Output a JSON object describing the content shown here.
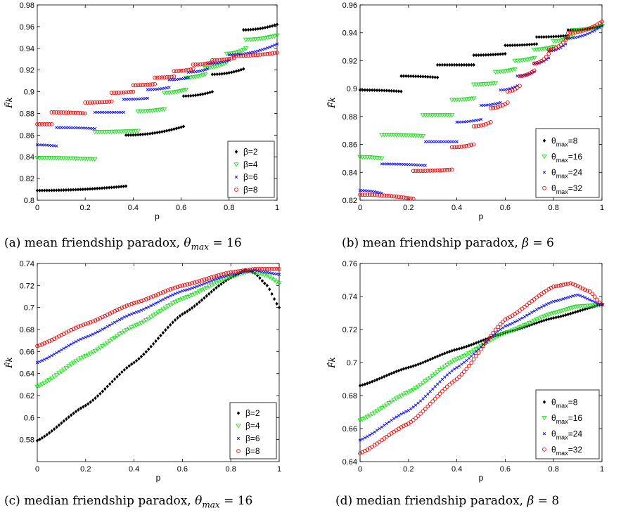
{
  "chart_data": [
    {
      "type": "scatter",
      "title": "",
      "xlabel": "p",
      "ylabel": "F̃k",
      "xlim": [
        0,
        1
      ],
      "ylim": [
        0.8,
        0.98
      ],
      "xticks": [
        "0",
        "0.2",
        "0.4",
        "0.6",
        "0.8",
        "1"
      ],
      "yticks": [
        "0.8",
        "0.82",
        "0.84",
        "0.86",
        "0.88",
        "0.9",
        "0.92",
        "0.94",
        "0.96",
        "0.98"
      ],
      "legend_position": "bottom-right",
      "kind": "step",
      "series": [
        {
          "name": "β=2",
          "color": "#000000",
          "marker": "diamond",
          "steps": [
            [
              0.0,
              0.37,
              0.809,
              0.813
            ],
            [
              0.37,
              0.61,
              0.86,
              0.868
            ],
            [
              0.61,
              0.73,
              0.896,
              0.9
            ],
            [
              0.73,
              0.86,
              0.916,
              0.921
            ],
            [
              0.86,
              1.0,
              0.957,
              0.962
            ]
          ]
        },
        {
          "name": "β=4",
          "color": "#22dd22",
          "marker": "triangle",
          "steps": [
            [
              0.0,
              0.24,
              0.839,
              0.838
            ],
            [
              0.24,
              0.42,
              0.863,
              0.864
            ],
            [
              0.42,
              0.53,
              0.882,
              0.884
            ],
            [
              0.53,
              0.62,
              0.899,
              0.902
            ],
            [
              0.62,
              0.7,
              0.913,
              0.916
            ],
            [
              0.7,
              0.79,
              0.922,
              0.927
            ],
            [
              0.79,
              0.87,
              0.935,
              0.94
            ],
            [
              0.87,
              1.0,
              0.948,
              0.952
            ]
          ]
        },
        {
          "name": "β=6",
          "color": "#0000ee",
          "marker": "cross",
          "steps": [
            [
              0.0,
              0.08,
              0.851,
              0.85
            ],
            [
              0.08,
              0.24,
              0.867,
              0.866
            ],
            [
              0.24,
              0.36,
              0.881,
              0.881
            ],
            [
              0.36,
              0.46,
              0.893,
              0.894
            ],
            [
              0.46,
              0.55,
              0.902,
              0.904
            ],
            [
              0.55,
              0.63,
              0.911,
              0.913
            ],
            [
              0.63,
              0.71,
              0.918,
              0.921
            ],
            [
              0.71,
              0.8,
              0.926,
              0.929
            ],
            [
              0.8,
              1.0,
              0.934,
              0.944
            ]
          ]
        },
        {
          "name": "β=8",
          "color": "#ee0000",
          "marker": "circle",
          "steps": [
            [
              0.0,
              0.06,
              0.87,
              0.87
            ],
            [
              0.06,
              0.2,
              0.881,
              0.88
            ],
            [
              0.2,
              0.31,
              0.89,
              0.891
            ],
            [
              0.31,
              0.4,
              0.899,
              0.9
            ],
            [
              0.4,
              0.49,
              0.906,
              0.907
            ],
            [
              0.49,
              0.57,
              0.913,
              0.914
            ],
            [
              0.57,
              0.65,
              0.919,
              0.921
            ],
            [
              0.65,
              0.73,
              0.925,
              0.927
            ],
            [
              0.73,
              0.82,
              0.929,
              0.931
            ],
            [
              0.82,
              1.0,
              0.933,
              0.936
            ]
          ]
        }
      ]
    },
    {
      "type": "scatter",
      "title": "",
      "xlabel": "p",
      "ylabel": "F̃k",
      "xlim": [
        0,
        1
      ],
      "ylim": [
        0.82,
        0.96
      ],
      "xticks": [
        "0",
        "0.2",
        "0.4",
        "0.6",
        "0.8",
        "1"
      ],
      "yticks": [
        "0.82",
        "0.84",
        "0.86",
        "0.88",
        "0.9",
        "0.92",
        "0.94",
        "0.96"
      ],
      "legend_position": "bottom-right",
      "kind": "step",
      "series": [
        {
          "name": "θmax=8",
          "label": "θ",
          "sub": "max",
          "suffix": "=8",
          "color": "#000000",
          "marker": "diamond",
          "steps": [
            [
              0.0,
              0.17,
              0.899,
              0.898
            ],
            [
              0.17,
              0.32,
              0.909,
              0.908
            ],
            [
              0.32,
              0.47,
              0.917,
              0.917
            ],
            [
              0.47,
              0.6,
              0.924,
              0.925
            ],
            [
              0.6,
              0.73,
              0.931,
              0.932
            ],
            [
              0.73,
              0.86,
              0.937,
              0.938
            ],
            [
              0.86,
              1.0,
              0.942,
              0.945
            ]
          ]
        },
        {
          "name": "θmax=16",
          "label": "θ",
          "sub": "max",
          "suffix": "=16",
          "color": "#22dd22",
          "marker": "triangle",
          "steps": [
            [
              0.0,
              0.09,
              0.851,
              0.85
            ],
            [
              0.09,
              0.26,
              0.867,
              0.866
            ],
            [
              0.26,
              0.38,
              0.881,
              0.881
            ],
            [
              0.38,
              0.47,
              0.892,
              0.893
            ],
            [
              0.47,
              0.56,
              0.903,
              0.904
            ],
            [
              0.56,
              0.64,
              0.912,
              0.914
            ],
            [
              0.64,
              0.72,
              0.92,
              0.922
            ],
            [
              0.72,
              0.8,
              0.928,
              0.93
            ],
            [
              0.8,
              0.88,
              0.934,
              0.938
            ],
            [
              0.88,
              1.0,
              0.942,
              0.945
            ]
          ]
        },
        {
          "name": "θmax=24",
          "label": "θ",
          "sub": "max",
          "suffix": "=24",
          "color": "#0000ee",
          "marker": "cross",
          "steps": [
            [
              0.0,
              0.09,
              0.827,
              0.825
            ],
            [
              0.09,
              0.27,
              0.846,
              0.845
            ],
            [
              0.27,
              0.4,
              0.862,
              0.862
            ],
            [
              0.4,
              0.5,
              0.876,
              0.878
            ],
            [
              0.5,
              0.58,
              0.888,
              0.89
            ],
            [
              0.58,
              0.65,
              0.899,
              0.902
            ],
            [
              0.65,
              0.72,
              0.909,
              0.912
            ],
            [
              0.72,
              0.78,
              0.918,
              0.922
            ],
            [
              0.78,
              0.85,
              0.927,
              0.932
            ],
            [
              0.85,
              1.0,
              0.936,
              0.945
            ]
          ]
        },
        {
          "name": "θmax=32",
          "label": "θ",
          "sub": "max",
          "suffix": "=32",
          "color": "#ee0000",
          "marker": "circle",
          "steps": [
            [
              0.0,
              0.22,
              0.824,
              0.821
            ],
            [
              0.22,
              0.38,
              0.841,
              0.842
            ],
            [
              0.38,
              0.47,
              0.858,
              0.86
            ],
            [
              0.47,
              0.54,
              0.873,
              0.876
            ],
            [
              0.54,
              0.61,
              0.886,
              0.89
            ],
            [
              0.61,
              0.66,
              0.898,
              0.902
            ],
            [
              0.66,
              0.72,
              0.909,
              0.913
            ],
            [
              0.72,
              0.78,
              0.918,
              0.925
            ],
            [
              0.78,
              0.86,
              0.928,
              0.937
            ],
            [
              0.86,
              1.0,
              0.94,
              0.948
            ]
          ]
        }
      ]
    },
    {
      "type": "scatter",
      "title": "",
      "xlabel": "p",
      "ylabel": "F̂k",
      "xlim": [
        0,
        1
      ],
      "ylim": [
        0.56,
        0.74
      ],
      "xticks": [
        "0",
        "0.2",
        "0.4",
        "0.6",
        "0.8",
        "1"
      ],
      "yticks": [
        "0.58",
        "0.6",
        "0.62",
        "0.64",
        "0.66",
        "0.68",
        "0.7",
        "0.72",
        "0.74"
      ],
      "legend_position": "bottom-right",
      "kind": "curve",
      "series": [
        {
          "name": "β=2",
          "color": "#000000",
          "marker": "diamond",
          "curve": [
            [
              0.0,
              0.579
            ],
            [
              0.2,
              0.611
            ],
            [
              0.4,
              0.65
            ],
            [
              0.6,
              0.694
            ],
            [
              0.8,
              0.727
            ],
            [
              0.86,
              0.734
            ],
            [
              0.9,
              0.731
            ],
            [
              0.95,
              0.72
            ],
            [
              1.0,
              0.7
            ]
          ]
        },
        {
          "name": "β=4",
          "color": "#22dd22",
          "marker": "triangle",
          "curve": [
            [
              0.0,
              0.628
            ],
            [
              0.2,
              0.656
            ],
            [
              0.4,
              0.683
            ],
            [
              0.6,
              0.708
            ],
            [
              0.8,
              0.728
            ],
            [
              0.88,
              0.733
            ],
            [
              0.95,
              0.729
            ],
            [
              1.0,
              0.722
            ]
          ]
        },
        {
          "name": "β=6",
          "color": "#0000ee",
          "marker": "cross",
          "curve": [
            [
              0.0,
              0.65
            ],
            [
              0.2,
              0.673
            ],
            [
              0.4,
              0.695
            ],
            [
              0.6,
              0.715
            ],
            [
              0.8,
              0.73
            ],
            [
              0.9,
              0.734
            ],
            [
              1.0,
              0.73
            ]
          ]
        },
        {
          "name": "β=8",
          "color": "#ee0000",
          "marker": "circle",
          "curve": [
            [
              0.0,
              0.665
            ],
            [
              0.2,
              0.685
            ],
            [
              0.4,
              0.704
            ],
            [
              0.6,
              0.72
            ],
            [
              0.8,
              0.732
            ],
            [
              0.9,
              0.735
            ],
            [
              1.0,
              0.735
            ]
          ]
        }
      ]
    },
    {
      "type": "scatter",
      "title": "",
      "xlabel": "p",
      "ylabel": "F̂k",
      "xlim": [
        0,
        1
      ],
      "ylim": [
        0.64,
        0.76
      ],
      "xticks": [
        "0",
        "0.2",
        "0.4",
        "0.6",
        "0.8",
        "1"
      ],
      "yticks": [
        "0.64",
        "0.66",
        "0.68",
        "0.7",
        "0.72",
        "0.74",
        "0.76"
      ],
      "legend_position": "bottom-right",
      "kind": "curve",
      "series": [
        {
          "name": "θmax=8",
          "label": "θ",
          "sub": "max",
          "suffix": "=8",
          "color": "#000000",
          "marker": "diamond",
          "curve": [
            [
              0.0,
              0.686
            ],
            [
              0.2,
              0.697
            ],
            [
              0.4,
              0.708
            ],
            [
              0.6,
              0.718
            ],
            [
              0.8,
              0.727
            ],
            [
              1.0,
              0.735
            ]
          ]
        },
        {
          "name": "θmax=16",
          "label": "θ",
          "sub": "max",
          "suffix": "=16",
          "color": "#22dd22",
          "marker": "triangle",
          "curve": [
            [
              0.0,
              0.665
            ],
            [
              0.2,
              0.682
            ],
            [
              0.4,
              0.702
            ],
            [
              0.6,
              0.718
            ],
            [
              0.8,
              0.73
            ],
            [
              0.9,
              0.734
            ],
            [
              1.0,
              0.735
            ]
          ]
        },
        {
          "name": "θmax=24",
          "label": "θ",
          "sub": "max",
          "suffix": "=24",
          "color": "#0000ee",
          "marker": "cross",
          "curve": [
            [
              0.0,
              0.653
            ],
            [
              0.2,
              0.671
            ],
            [
              0.4,
              0.697
            ],
            [
              0.6,
              0.722
            ],
            [
              0.8,
              0.737
            ],
            [
              0.9,
              0.741
            ],
            [
              1.0,
              0.735
            ]
          ]
        },
        {
          "name": "θmax=32",
          "label": "θ",
          "sub": "max",
          "suffix": "=32",
          "color": "#ee0000",
          "marker": "circle",
          "curve": [
            [
              0.0,
              0.645
            ],
            [
              0.2,
              0.663
            ],
            [
              0.4,
              0.69
            ],
            [
              0.6,
              0.726
            ],
            [
              0.8,
              0.746
            ],
            [
              0.87,
              0.748
            ],
            [
              0.95,
              0.743
            ],
            [
              1.0,
              0.735
            ]
          ]
        }
      ]
    }
  ],
  "captions": [
    {
      "label": "(a) mean friendship paradox,",
      "math": "θ",
      "sub": "max",
      "eq": " = 16"
    },
    {
      "label": "(b) mean friendship paradox,",
      "math": "β",
      "sub": "",
      "eq": " = 6"
    },
    {
      "label": "(c) median friendship paradox,",
      "math": "θ",
      "sub": "max",
      "eq": " = 16"
    },
    {
      "label": "(d) median friendship paradox,",
      "math": "β",
      "sub": "",
      "eq": " = 8"
    }
  ]
}
